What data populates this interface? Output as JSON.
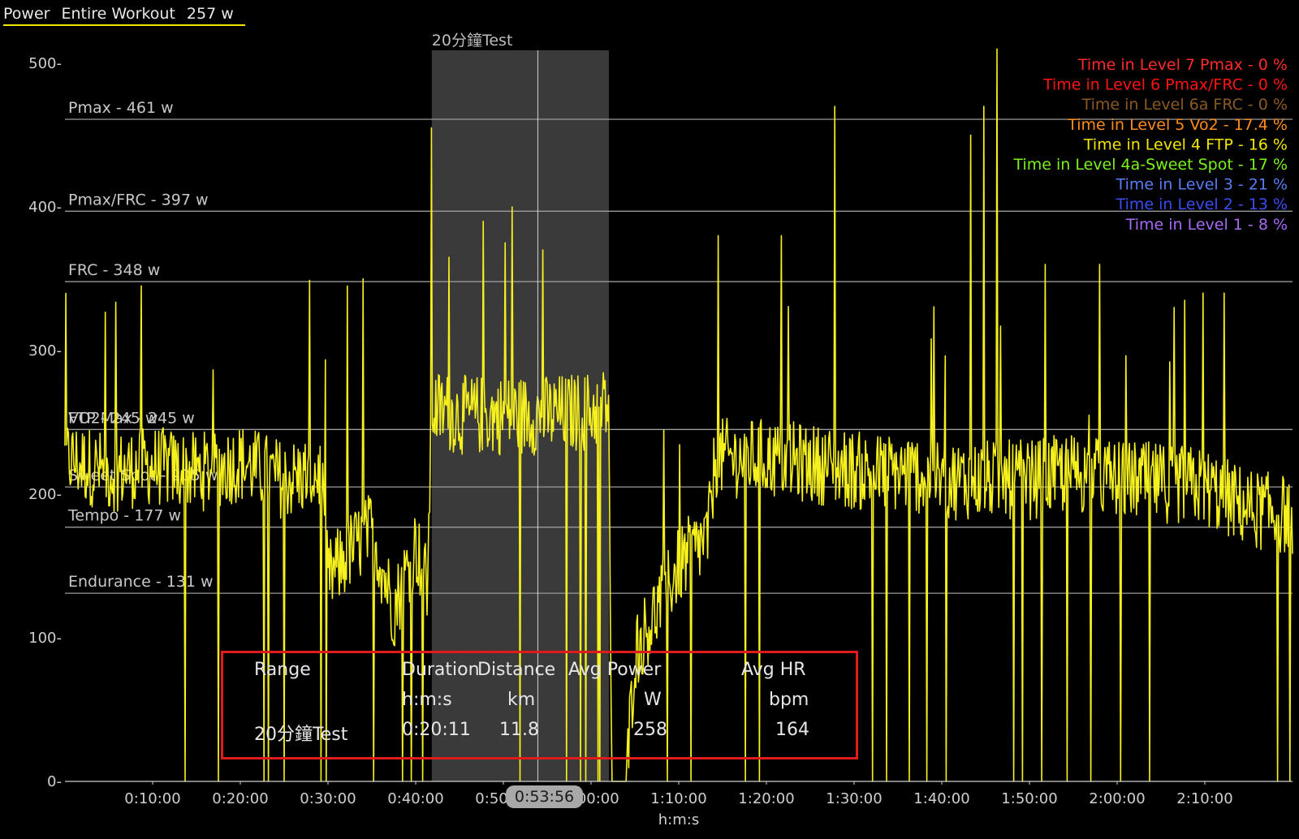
{
  "header": {
    "metric": "Power",
    "range": "Entire Workout",
    "average": "257 w"
  },
  "selection": {
    "label": "20分鐘Test",
    "start_s": 2510,
    "end_s": 3722
  },
  "cursor": {
    "time_label": "0:53:56",
    "time_s": 3236
  },
  "info_table": {
    "headers": [
      "Range",
      "Duration",
      "Distance",
      "Avg Power",
      "Avg HR"
    ],
    "units": [
      "",
      "h:m:s",
      "km",
      "W",
      "bpm"
    ],
    "rows": [
      [
        "20分鐘Test",
        "0:20:11",
        "11.8",
        "258",
        "164"
      ]
    ]
  },
  "levels_legend": [
    {
      "label": "Time in Level 7 Pmax - 0 %",
      "color": "#ff2a2a"
    },
    {
      "label": "Time in Level 6 Pmax/FRC - 0 %",
      "color": "#ff1414"
    },
    {
      "label": "Time in Level 6a FRC - 0 %",
      "color": "#8a5a24"
    },
    {
      "label": "Time in Level 5 Vo2 - 17.4 %",
      "color": "#ff8c1a"
    },
    {
      "label": "Time in Level 4 FTP - 16 %",
      "color": "#f2e600"
    },
    {
      "label": "Time in Level 4a-Sweet Spot - 17 %",
      "color": "#7cf21a"
    },
    {
      "label": "Time in Level 3 - 21 %",
      "color": "#5a7cf2"
    },
    {
      "label": "Time in Level 2 - 13 %",
      "color": "#3a4cf2"
    },
    {
      "label": "Time in Level 1 - 8 %",
      "color": "#a56af2"
    }
  ],
  "chart_data": {
    "type": "line",
    "xlabel": "h:m:s",
    "ylabel": "",
    "xlim": [
      0,
      8400
    ],
    "ylim": [
      0,
      500
    ],
    "x_ticks": [
      {
        "t": 600,
        "label": "0:10:00"
      },
      {
        "t": 1200,
        "label": "0:20:00"
      },
      {
        "t": 1800,
        "label": "0:30:00"
      },
      {
        "t": 2400,
        "label": "0:40:00"
      },
      {
        "t": 3000,
        "label": "0:50:00"
      },
      {
        "t": 3600,
        "label": "1:00:00"
      },
      {
        "t": 4200,
        "label": "1:10:00"
      },
      {
        "t": 4800,
        "label": "1:20:00"
      },
      {
        "t": 5400,
        "label": "1:30:00"
      },
      {
        "t": 6000,
        "label": "1:40:00"
      },
      {
        "t": 6600,
        "label": "1:50:00"
      },
      {
        "t": 7200,
        "label": "2:00:00"
      },
      {
        "t": 7800,
        "label": "2:10:00"
      }
    ],
    "y_ticks": [
      {
        "v": 0,
        "label": "0-"
      },
      {
        "v": 100,
        "label": "100-"
      },
      {
        "v": 200,
        "label": "200-"
      },
      {
        "v": 300,
        "label": "300-"
      },
      {
        "v": 400,
        "label": "400-"
      },
      {
        "v": 500,
        "label": "500-"
      }
    ],
    "zone_lines": [
      {
        "label": "Pmax - 461 w",
        "value": 461
      },
      {
        "label": "Pmax/FRC - 397 w",
        "value": 397
      },
      {
        "label": "FRC - 348 w",
        "value": 348
      },
      {
        "label": "FTP - 245 w",
        "value": 245
      },
      {
        "label": "VO2Max - 245 w",
        "value": 245
      },
      {
        "label": "Sweet Spot - 205 w",
        "value": 205
      },
      {
        "label": "Tempo - 177 w",
        "value": 177
      },
      {
        "label": "Endurance - 131 w",
        "value": 131
      }
    ],
    "series": [
      {
        "color": "#f5f01e",
        "profile": [
          [
            0,
            225
          ],
          [
            300,
            215
          ],
          [
            600,
            220
          ],
          [
            900,
            215
          ],
          [
            1200,
            222
          ],
          [
            1500,
            210
          ],
          [
            1750,
            215
          ],
          [
            1800,
            140
          ],
          [
            1950,
            160
          ],
          [
            2100,
            175
          ],
          [
            2250,
            120
          ],
          [
            2400,
            165
          ],
          [
            2480,
            135
          ],
          [
            2510,
            260
          ],
          [
            2700,
            255
          ],
          [
            3000,
            255
          ],
          [
            3300,
            255
          ],
          [
            3600,
            258
          ],
          [
            3722,
            262
          ],
          [
            3740,
            0
          ],
          [
            3840,
            0
          ],
          [
            3900,
            90
          ],
          [
            4050,
            120
          ],
          [
            4200,
            150
          ],
          [
            4400,
            170
          ],
          [
            4450,
            225
          ],
          [
            4800,
            225
          ],
          [
            5200,
            220
          ],
          [
            5500,
            215
          ],
          [
            5800,
            215
          ],
          [
            6000,
            210
          ],
          [
            6300,
            210
          ],
          [
            6600,
            210
          ],
          [
            6900,
            215
          ],
          [
            7200,
            210
          ],
          [
            7500,
            208
          ],
          [
            7800,
            205
          ],
          [
            8100,
            190
          ],
          [
            8400,
            185
          ]
        ],
        "spikes": [
          [
            520,
            345
          ],
          [
            1930,
            345
          ],
          [
            2040,
            350
          ],
          [
            2450,
            0
          ],
          [
            2510,
            455
          ],
          [
            2630,
            365
          ],
          [
            2860,
            390
          ],
          [
            3010,
            375
          ],
          [
            3060,
            400
          ],
          [
            3270,
            370
          ],
          [
            4120,
            0
          ],
          [
            4470,
            380
          ],
          [
            4900,
            380
          ],
          [
            5270,
            470
          ],
          [
            6200,
            450
          ],
          [
            6290,
            470
          ],
          [
            6380,
            510
          ],
          [
            6710,
            360
          ],
          [
            7080,
            360
          ],
          [
            7590,
            330
          ],
          [
            7660,
            335
          ],
          [
            7790,
            340
          ],
          [
            7930,
            340
          ],
          [
            1050,
            0
          ],
          [
            2310,
            0
          ],
          [
            3430,
            0
          ],
          [
            3530,
            0
          ],
          [
            5620,
            0
          ],
          [
            5780,
            0
          ],
          [
            5900,
            0
          ],
          [
            6030,
            0
          ],
          [
            6550,
            0
          ],
          [
            6860,
            0
          ],
          [
            7420,
            0
          ],
          [
            8300,
            0
          ],
          [
            820,
            0
          ],
          [
            1390,
            0
          ]
        ],
        "noise": 28,
        "dropout_rate": 0.012
      }
    ]
  }
}
